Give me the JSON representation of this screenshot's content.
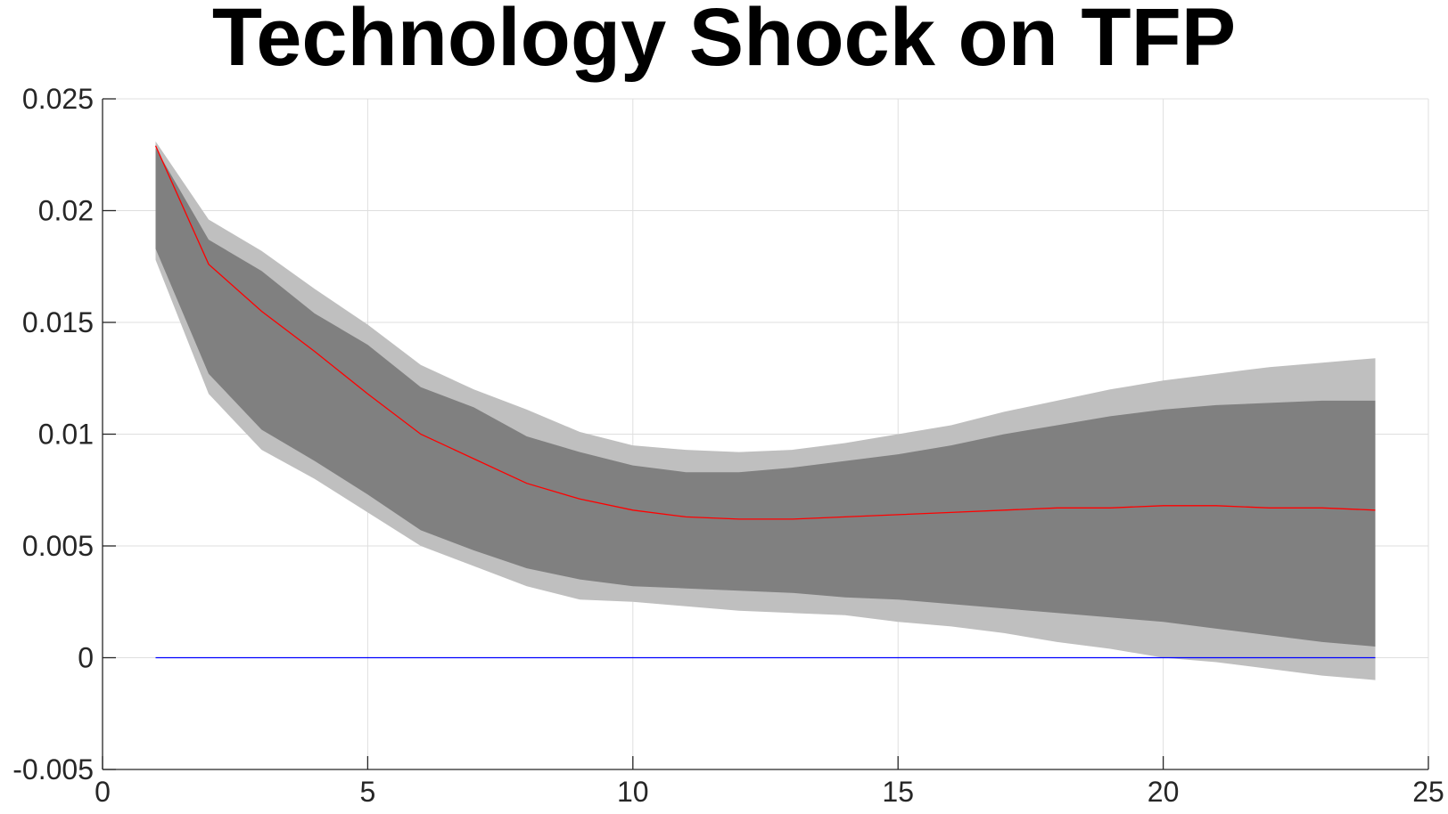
{
  "chart_data": {
    "type": "area",
    "title": "Technology Shock on TFP",
    "xlabel": "",
    "ylabel": "",
    "xlim": [
      0,
      25
    ],
    "ylim": [
      -0.005,
      0.025
    ],
    "xticks": [
      0,
      5,
      10,
      15,
      20,
      25
    ],
    "xtick_labels": [
      "0",
      "5",
      "10",
      "15",
      "20",
      "25"
    ],
    "yticks": [
      -0.005,
      0,
      0.005,
      0.01,
      0.015,
      0.02,
      0.025
    ],
    "ytick_labels": [
      "-0.005",
      "0",
      "0.005",
      "0.01",
      "0.015",
      "0.02",
      "0.025"
    ],
    "grid": true,
    "x": [
      1,
      2,
      3,
      4,
      5,
      6,
      7,
      8,
      9,
      10,
      11,
      12,
      13,
      14,
      15,
      16,
      17,
      18,
      19,
      20,
      21,
      22,
      23,
      24
    ],
    "bands": [
      {
        "lower": [
          0.0178,
          0.0118,
          0.0093,
          0.008,
          0.0065,
          0.005,
          0.0041,
          0.0032,
          0.0026,
          0.0025,
          0.0023,
          0.0021,
          0.002,
          0.0019,
          0.0016,
          0.0014,
          0.0011,
          0.0007,
          0.0004,
          0.0,
          -0.0002,
          -0.0005,
          -0.0008,
          -0.001
        ],
        "upper": [
          0.0231,
          0.0196,
          0.0182,
          0.0165,
          0.0149,
          0.0131,
          0.012,
          0.0111,
          0.0101,
          0.0095,
          0.0093,
          0.0092,
          0.0093,
          0.0096,
          0.01,
          0.0104,
          0.011,
          0.0115,
          0.012,
          0.0124,
          0.0127,
          0.013,
          0.0132,
          0.0134
        ],
        "color": "#bfbfbf"
      },
      {
        "lower": [
          0.0183,
          0.0127,
          0.0102,
          0.0088,
          0.0073,
          0.0057,
          0.0048,
          0.004,
          0.0035,
          0.0032,
          0.0031,
          0.003,
          0.0029,
          0.0027,
          0.0026,
          0.0024,
          0.0022,
          0.002,
          0.0018,
          0.0016,
          0.0013,
          0.001,
          0.0007,
          0.0005
        ],
        "upper": [
          0.0228,
          0.0187,
          0.0173,
          0.0154,
          0.014,
          0.0121,
          0.0112,
          0.0099,
          0.0092,
          0.0086,
          0.0083,
          0.0083,
          0.0085,
          0.0088,
          0.0091,
          0.0095,
          0.01,
          0.0104,
          0.0108,
          0.0111,
          0.0113,
          0.0114,
          0.0115,
          0.0115
        ],
        "color": "#808080"
      }
    ],
    "series": [
      {
        "values": [
          0.0229,
          0.0176,
          0.0155,
          0.0137,
          0.0118,
          0.01,
          0.0089,
          0.0078,
          0.0071,
          0.0066,
          0.0063,
          0.0062,
          0.0062,
          0.0063,
          0.0064,
          0.0065,
          0.0066,
          0.0067,
          0.0067,
          0.0068,
          0.0068,
          0.0067,
          0.0067,
          0.0066
        ],
        "color": "#ff0000"
      },
      {
        "values": [
          0,
          0,
          0,
          0,
          0,
          0,
          0,
          0,
          0,
          0,
          0,
          0,
          0,
          0,
          0,
          0,
          0,
          0,
          0,
          0,
          0,
          0,
          0,
          0
        ],
        "color": "#0000ff"
      }
    ],
    "colors": {
      "axis": "#262626",
      "grid": "#dfdfdf"
    }
  }
}
